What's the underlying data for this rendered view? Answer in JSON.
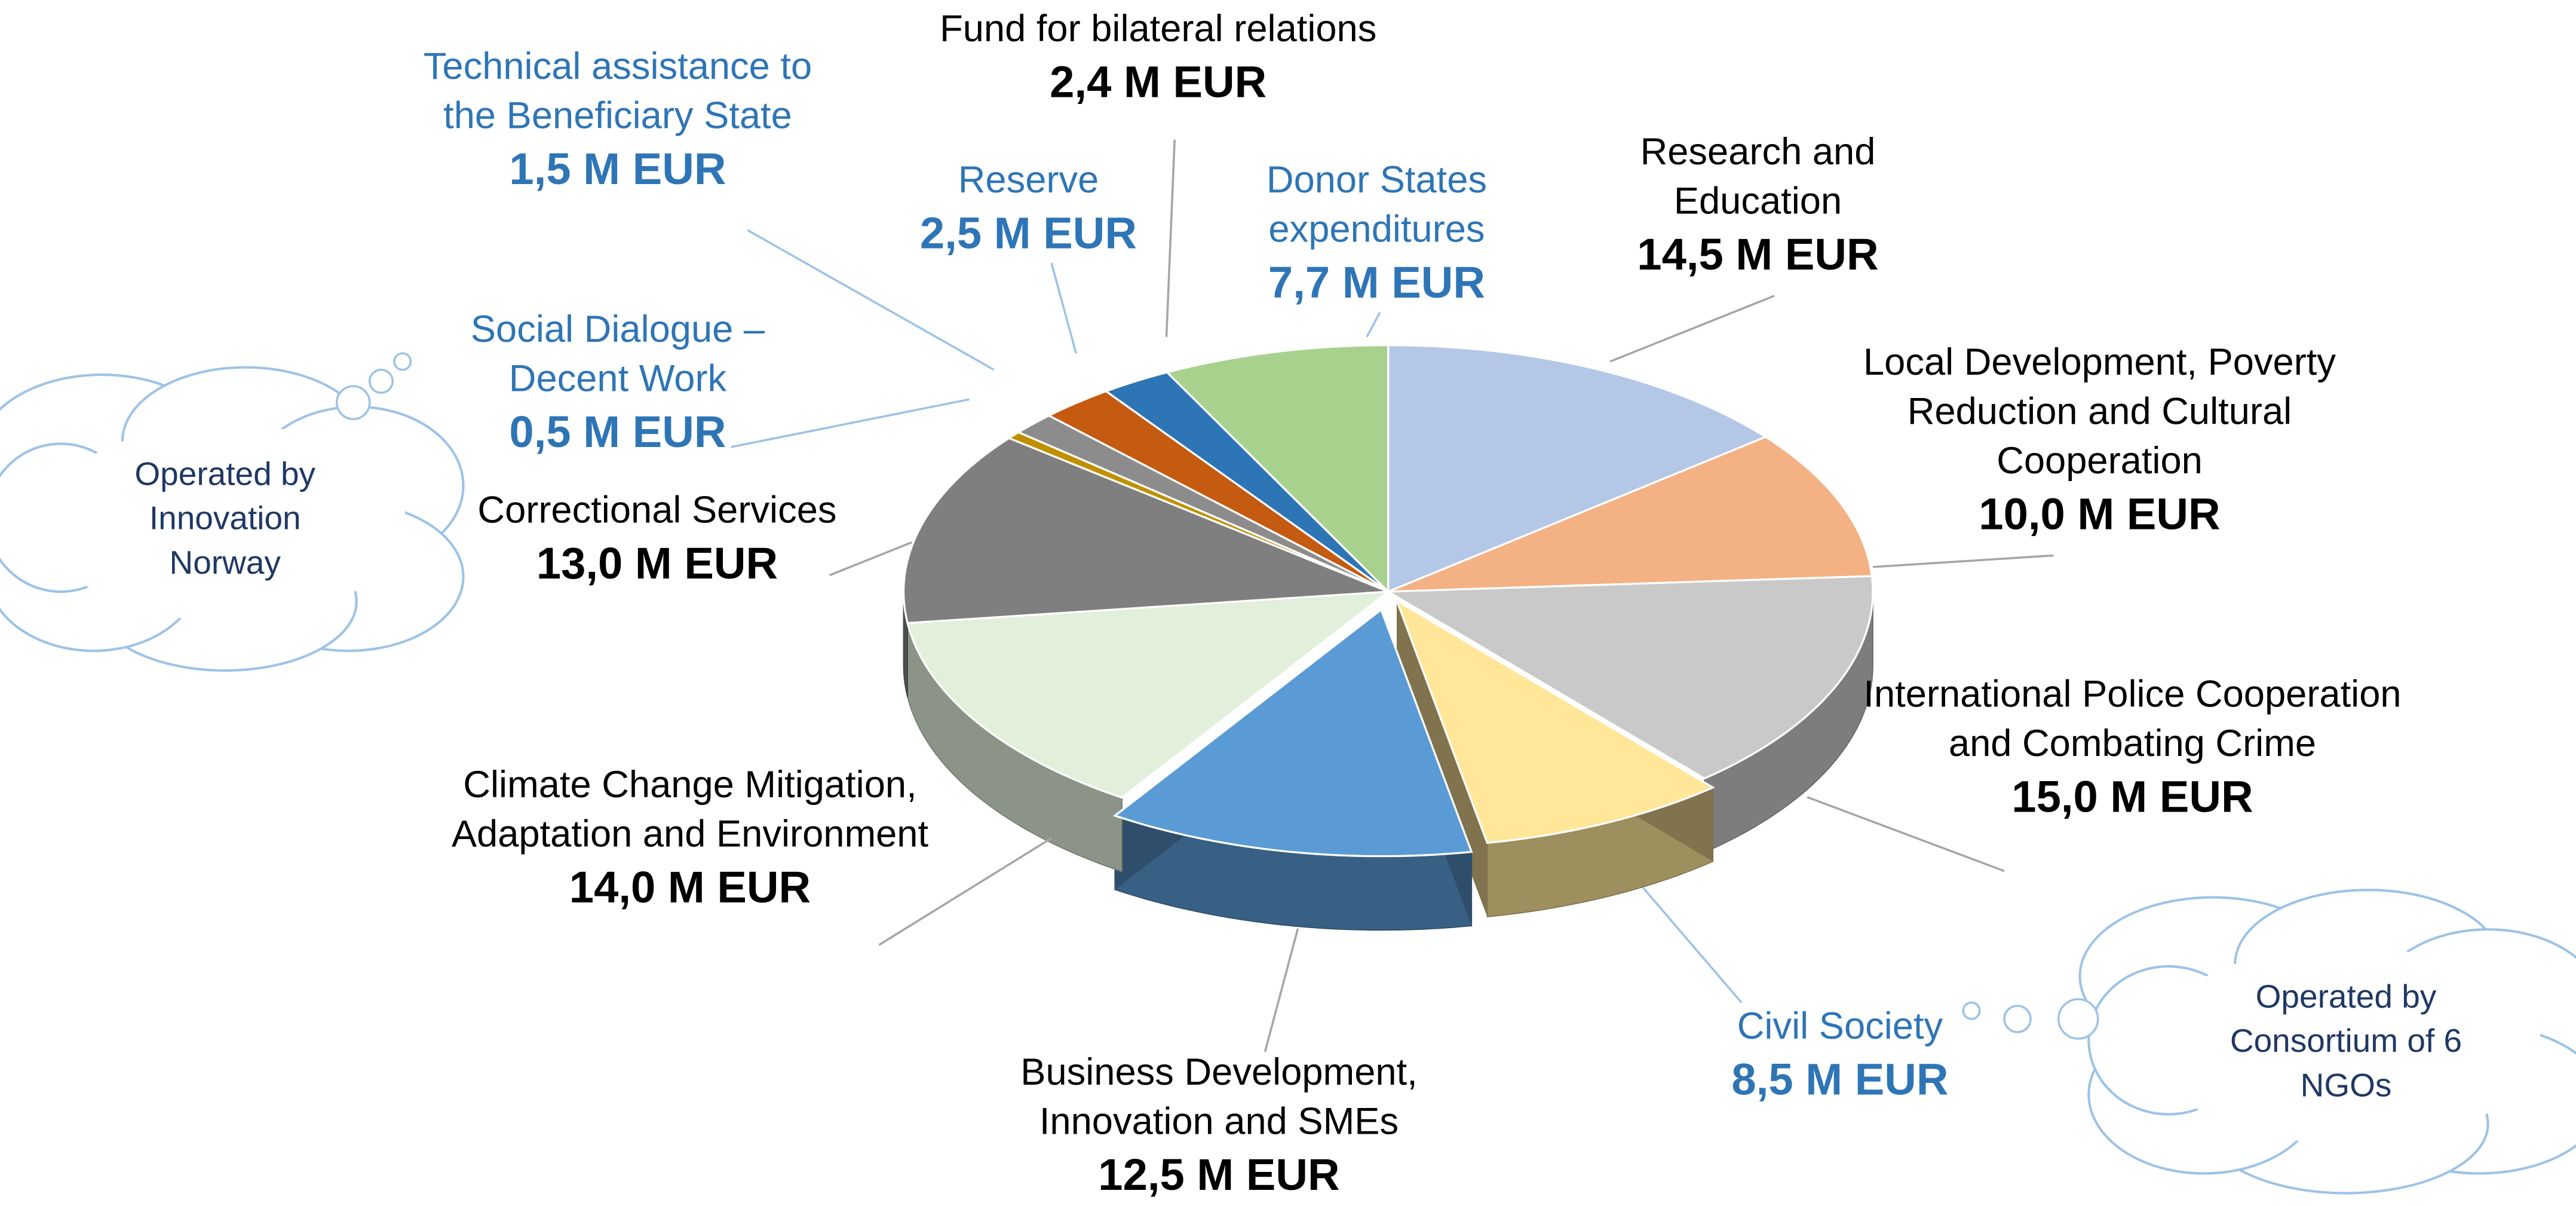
{
  "chart_data": {
    "type": "pie3d",
    "categories": [
      "Research and Education",
      "Local Development, Poverty Reduction and Cultural Cooperation",
      "International Police Cooperation and Combating Crime",
      "Civil Society",
      "Business Development, Innovation and SMEs",
      "Climate Change Mitigation, Adaptation and Environment",
      "Correctional Services",
      "Social Dialogue – Decent Work",
      "Technical assistance to the Beneficiary State",
      "Reserve",
      "Fund for bilateral relations",
      "Donor States expenditures"
    ],
    "values": [
      14.5,
      10.0,
      15.0,
      8.5,
      12.5,
      14.0,
      13.0,
      0.5,
      1.5,
      2.5,
      2.4,
      7.7
    ],
    "value_labels": [
      "14,5 M EUR",
      "10,0 M EUR",
      "15,0 M EUR",
      "8,5 M EUR",
      "12,5 M EUR",
      "14,0 M EUR",
      "13,0 M EUR",
      "0,5 M EUR",
      "1,5 M EUR",
      "2,5 M EUR",
      "2,4 M EUR",
      "7,7 M EUR"
    ],
    "colors": [
      "#b4c7e7",
      "#f4b183",
      "#c9c9c9",
      "#ffe699",
      "#5b9bd5",
      "#e2efda",
      "#7f7f7f",
      "#bf9000",
      "#8c8c8c",
      "#c55a11",
      "#2e75b6",
      "#a9d18e"
    ],
    "label_colors": [
      "#000000",
      "#000000",
      "#000000",
      "#2e75b6",
      "#000000",
      "#000000",
      "#000000",
      "#2e75b6",
      "#2e75b6",
      "#2e75b6",
      "#000000",
      "#2e75b6"
    ],
    "annotations": [
      "Operated by Innovation Norway",
      "Operated by Consortium of 6 NGOs"
    ]
  }
}
